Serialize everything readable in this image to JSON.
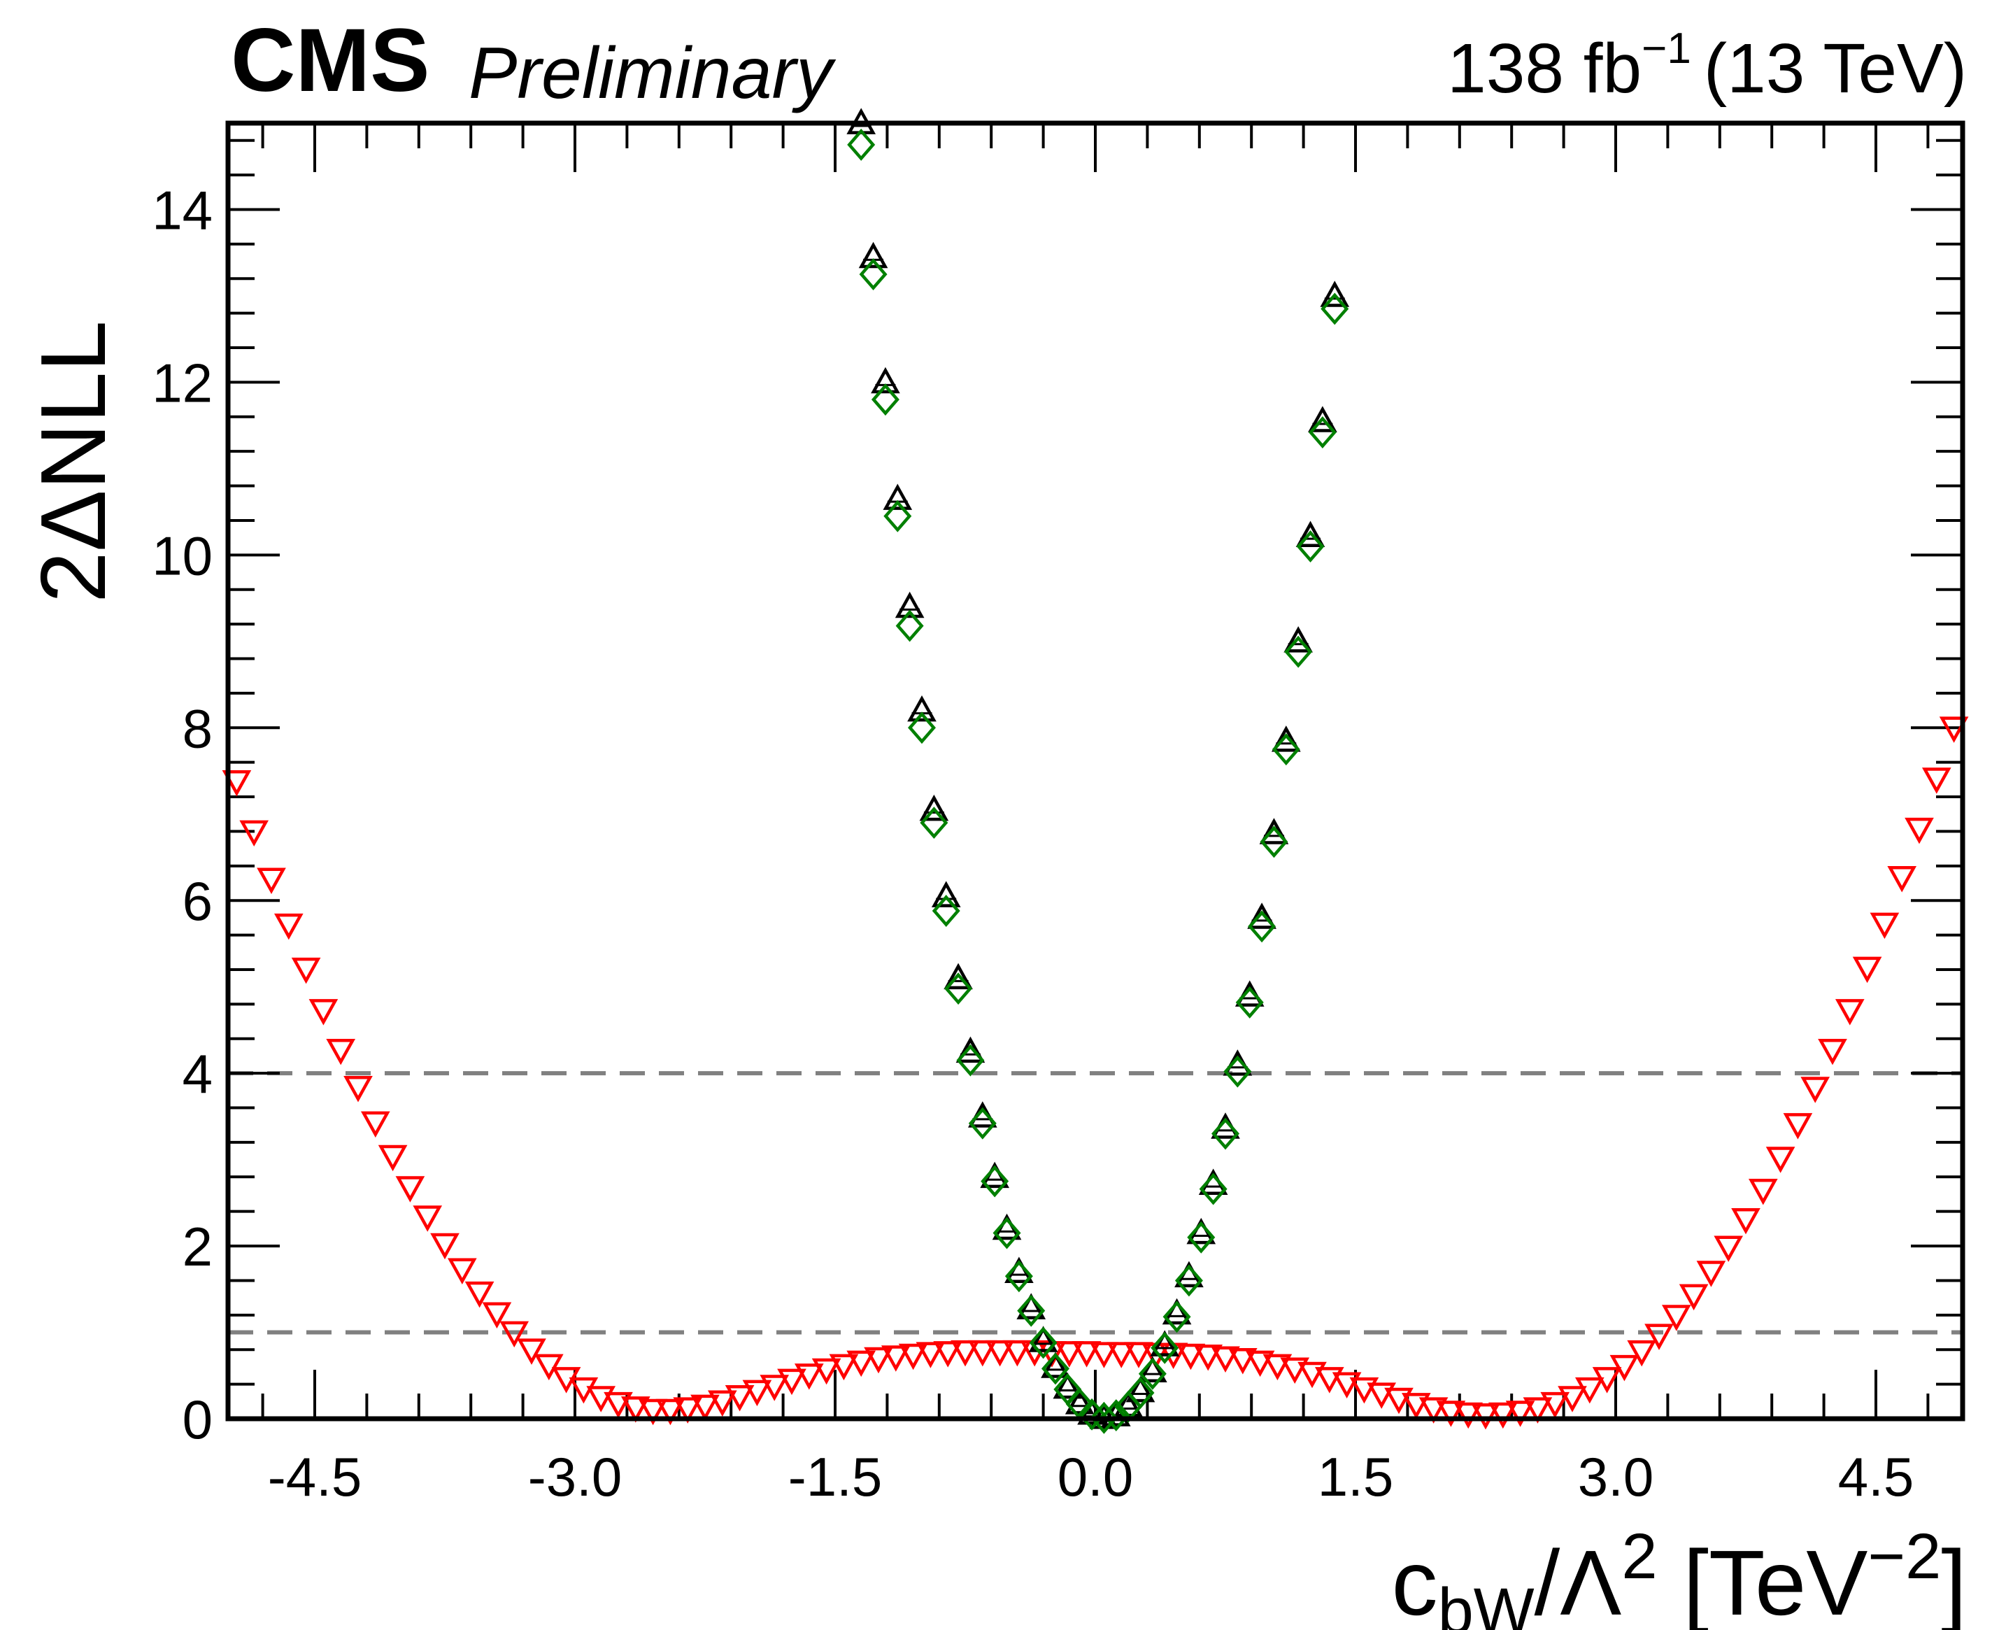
{
  "header": {
    "experiment": "CMS",
    "status": "Preliminary",
    "lumi_value": "138 fb",
    "lumi_exponent": "−1",
    "energy": "(13 TeV)"
  },
  "axes": {
    "ylabel": "2ΔNLL",
    "xlabel_main": "c",
    "xlabel_sub": "bW",
    "xlabel_slash": "/Λ",
    "xlabel_pow": "2",
    "xlabel_unit_open": " [TeV",
    "xlabel_unit_pow": "−2",
    "xlabel_unit_close": "]"
  },
  "chart_data": {
    "type": "scatter",
    "xlim": [
      -5.0,
      5.0
    ],
    "ylim": [
      0,
      15
    ],
    "x_ticks": [
      -4.5,
      -3.0,
      -1.5,
      0.0,
      1.5,
      3.0,
      4.5
    ],
    "x_tick_labels": [
      "-4.5",
      "-3.0",
      "-1.5",
      "0.0",
      "1.5",
      "3.0",
      "4.5"
    ],
    "y_ticks": [
      0,
      2,
      4,
      6,
      8,
      10,
      12,
      14
    ],
    "y_tick_labels": [
      "0",
      "2",
      "4",
      "6",
      "8",
      "10",
      "12",
      "14"
    ],
    "reference_lines": [
      {
        "y": 1,
        "style": "dashed",
        "color": "#808080"
      },
      {
        "y": 4,
        "style": "dashed",
        "color": "#808080"
      }
    ],
    "series": [
      {
        "name": "red-down-triangles",
        "marker": "triangle-down",
        "color": "#ff0000",
        "x": [
          -4.95,
          -4.85,
          -4.75,
          -4.65,
          -4.55,
          -4.45,
          -4.35,
          -4.25,
          -4.15,
          -4.05,
          -3.95,
          -3.85,
          -3.75,
          -3.65,
          -3.55,
          -3.45,
          -3.35,
          -3.25,
          -3.15,
          -3.05,
          -2.95,
          -2.85,
          -2.75,
          -2.65,
          -2.55,
          -2.45,
          -2.35,
          -2.25,
          -2.15,
          -2.05,
          -1.95,
          -1.85,
          -1.75,
          -1.65,
          -1.55,
          -1.45,
          -1.35,
          -1.25,
          -1.15,
          -1.05,
          -0.95,
          -0.85,
          -0.75,
          -0.65,
          -0.55,
          -0.45,
          -0.35,
          -0.25,
          -0.15,
          -0.05,
          0.05,
          0.15,
          0.25,
          0.35,
          0.45,
          0.55,
          0.65,
          0.75,
          0.85,
          0.95,
          1.05,
          1.15,
          1.25,
          1.35,
          1.45,
          1.55,
          1.65,
          1.75,
          1.85,
          1.95,
          2.05,
          2.15,
          2.25,
          2.35,
          2.45,
          2.55,
          2.65,
          2.75,
          2.85,
          2.95,
          3.05,
          3.15,
          3.25,
          3.35,
          3.45,
          3.55,
          3.65,
          3.75,
          3.85,
          3.95,
          4.05,
          4.15,
          4.25,
          4.35,
          4.45,
          4.55,
          4.65,
          4.75,
          4.85,
          4.95
        ],
        "y": [
          7.38,
          6.8,
          6.25,
          5.72,
          5.21,
          4.73,
          4.27,
          3.84,
          3.43,
          3.04,
          2.68,
          2.34,
          2.02,
          1.73,
          1.46,
          1.22,
          1.0,
          0.8,
          0.62,
          0.47,
          0.35,
          0.25,
          0.18,
          0.13,
          0.1,
          0.1,
          0.12,
          0.15,
          0.2,
          0.26,
          0.32,
          0.38,
          0.45,
          0.51,
          0.57,
          0.62,
          0.66,
          0.7,
          0.72,
          0.74,
          0.76,
          0.77,
          0.78,
          0.78,
          0.78,
          0.78,
          0.78,
          0.77,
          0.77,
          0.77,
          0.76,
          0.76,
          0.76,
          0.75,
          0.75,
          0.74,
          0.73,
          0.71,
          0.69,
          0.66,
          0.62,
          0.58,
          0.53,
          0.47,
          0.41,
          0.35,
          0.29,
          0.23,
          0.17,
          0.12,
          0.08,
          0.06,
          0.05,
          0.06,
          0.08,
          0.12,
          0.18,
          0.25,
          0.35,
          0.47,
          0.61,
          0.78,
          0.97,
          1.19,
          1.43,
          1.7,
          1.99,
          2.31,
          2.65,
          3.02,
          3.41,
          3.83,
          4.27,
          4.73,
          5.22,
          5.73,
          6.27,
          6.83,
          7.41,
          8.0
        ]
      },
      {
        "name": "black-up-triangles",
        "marker": "triangle-up",
        "color": "#000000",
        "x": [
          -1.35,
          -1.28,
          -1.21,
          -1.14,
          -1.07,
          -1.0,
          -0.93,
          -0.86,
          -0.79,
          -0.72,
          -0.65,
          -0.58,
          -0.51,
          -0.44,
          -0.37,
          -0.3,
          -0.23,
          -0.16,
          -0.09,
          -0.02,
          0.05,
          0.12,
          0.19,
          0.26,
          0.33,
          0.4,
          0.47,
          0.54,
          0.61,
          0.68,
          0.75,
          0.82,
          0.89,
          0.96,
          1.03,
          1.1,
          1.17,
          1.24,
          1.31,
          1.38
        ],
        "y": [
          15.0,
          13.45,
          12.0,
          10.65,
          9.4,
          8.2,
          7.05,
          6.05,
          5.1,
          4.25,
          3.5,
          2.8,
          2.2,
          1.7,
          1.28,
          0.9,
          0.6,
          0.36,
          0.18,
          0.06,
          0.01,
          0.04,
          0.15,
          0.32,
          0.55,
          0.85,
          1.22,
          1.65,
          2.15,
          2.72,
          3.37,
          4.1,
          4.9,
          5.8,
          6.78,
          7.85,
          9.0,
          10.22,
          11.55,
          13.0
        ]
      },
      {
        "name": "green-diamonds",
        "marker": "diamond",
        "color": "#008000",
        "x": [
          -1.35,
          -1.28,
          -1.21,
          -1.14,
          -1.07,
          -1.0,
          -0.93,
          -0.86,
          -0.79,
          -0.72,
          -0.65,
          -0.58,
          -0.51,
          -0.44,
          -0.37,
          -0.3,
          -0.23,
          -0.16,
          -0.09,
          -0.02,
          0.05,
          0.12,
          0.19,
          0.26,
          0.33,
          0.4,
          0.47,
          0.54,
          0.61,
          0.68,
          0.75,
          0.82,
          0.89,
          0.96,
          1.03,
          1.1,
          1.17,
          1.24,
          1.31,
          1.38
        ],
        "y": [
          14.75,
          13.25,
          11.8,
          10.45,
          9.18,
          8.0,
          6.9,
          5.88,
          4.98,
          4.15,
          3.42,
          2.75,
          2.15,
          1.65,
          1.25,
          0.88,
          0.58,
          0.34,
          0.17,
          0.05,
          0.01,
          0.04,
          0.14,
          0.3,
          0.52,
          0.82,
          1.18,
          1.6,
          2.1,
          2.66,
          3.3,
          4.02,
          4.82,
          5.7,
          6.68,
          7.75,
          8.88,
          10.1,
          11.42,
          12.85
        ]
      }
    ]
  }
}
